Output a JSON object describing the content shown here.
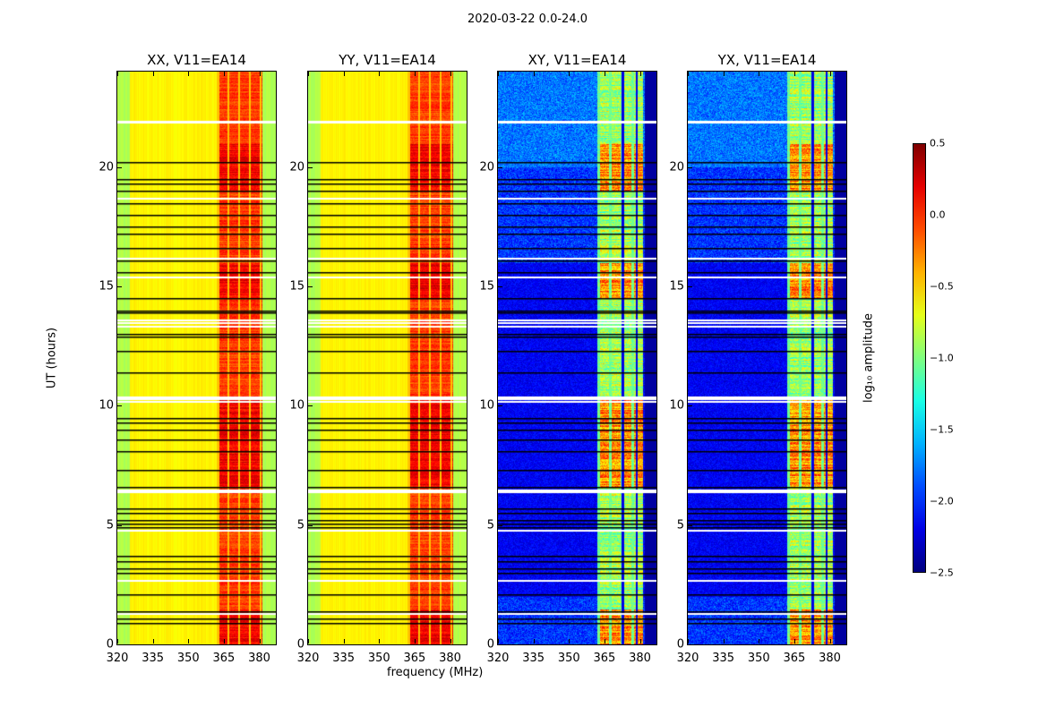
{
  "suptitle": "2020-03-22 0.0-24.0",
  "chart_data": {
    "type": "heatmap",
    "panels": [
      {
        "title": "XX, V11=EA14",
        "kind": "parallel"
      },
      {
        "title": "YY, V11=EA14",
        "kind": "parallel"
      },
      {
        "title": "XY, V11=EA14",
        "kind": "cross"
      },
      {
        "title": "YX, V11=EA14",
        "kind": "cross"
      }
    ],
    "xlabel": "frequency (MHz)",
    "ylabel": "UT (hours)",
    "xlim": [
      320,
      387
    ],
    "ylim": [
      0,
      24
    ],
    "xticks": [
      "320",
      "335",
      "350",
      "365",
      "380"
    ],
    "xtick_values": [
      320,
      335,
      350,
      365,
      380
    ],
    "yticks": [
      "0",
      "5",
      "10",
      "15",
      "20"
    ],
    "ytick_values": [
      0,
      5,
      10,
      15,
      20
    ],
    "strong_band_mhz": [
      362,
      381
    ],
    "parallel_baseline_log_amp": -0.6,
    "parallel_band_log_amp": 0.1,
    "cross_baseline_log_amp": -2.3,
    "cross_band_log_amp": -0.9,
    "flagged_hours_black": [
      0.9,
      1.1,
      1.4,
      2.1,
      3.0,
      3.2,
      3.5,
      3.7,
      4.9,
      5.05,
      5.2,
      5.5,
      5.7,
      6.6,
      7.3,
      8.1,
      8.6,
      9.0,
      9.3,
      9.5,
      11.4,
      12.3,
      12.9,
      13.0,
      13.9,
      14.0,
      14.5,
      15.6,
      16.1,
      16.6,
      17.2,
      17.5,
      18.0,
      18.5,
      19.0,
      19.3,
      19.5,
      20.2
    ],
    "flagged_hours_white": [
      1.3,
      2.7,
      4.8,
      6.4,
      6.5,
      10.2,
      10.3,
      10.4,
      13.35,
      13.5,
      13.6,
      15.4,
      16.2,
      18.7,
      21.9,
      21.95
    ],
    "colorbar": {
      "label": "log₁₀ amplitude",
      "colormap": "jet",
      "range": [
        -2.5,
        0.5
      ],
      "ticks": [
        "0.5",
        "0.0",
        "−0.5",
        "−1.0",
        "−1.5",
        "−2.0",
        "−2.5"
      ],
      "tick_values": [
        0.5,
        0.0,
        -0.5,
        -1.0,
        -1.5,
        -2.0,
        -2.5
      ]
    }
  }
}
